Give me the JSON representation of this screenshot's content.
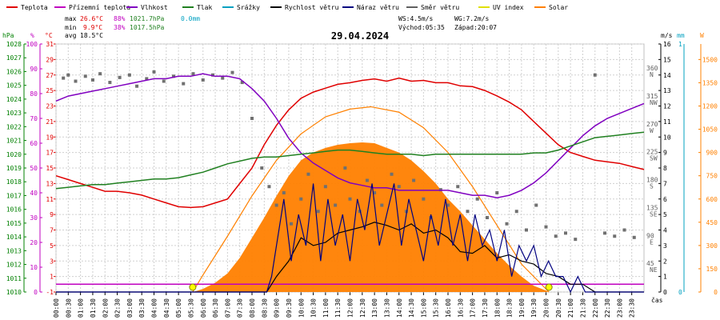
{
  "chart_data": {
    "type": "line",
    "title": "29.04.2024",
    "legend": [
      {
        "label": "Teplota",
        "color": "#e00000"
      },
      {
        "label": "Přízemní teplota",
        "color": "#c000c0"
      },
      {
        "label": "Vlhkost",
        "color": "#8000c0"
      },
      {
        "label": "Tlak",
        "color": "#208020"
      },
      {
        "label": "Srážky",
        "color": "#00a0c0"
      },
      {
        "label": "Rychlost větru",
        "color": "#000000"
      },
      {
        "label": "Náraz větru",
        "color": "#000080"
      },
      {
        "label": "Směr větru",
        "color": "#606060"
      },
      {
        "label": "UV index",
        "color": "#e0e000"
      },
      {
        "label": "Solar",
        "color": "#ff8000"
      }
    ],
    "stats": {
      "max_label": "max",
      "min_label": "min",
      "avg_label": "avg",
      "max_temp": "26.6°C",
      "max_hum": "88%",
      "max_press": "1021.7hPa",
      "max_rain": "0.0mm",
      "min_temp": "9.9°C",
      "min_hum": "38%",
      "min_press": "1017.5hPa",
      "avg_temp": "18.5°C"
    },
    "wind_info": {
      "ws": "WS:4.5m/s",
      "wg": "WG:7.2m/s",
      "sunrise": "Východ:05:35",
      "sunset": "Západ:20:07"
    },
    "axes": {
      "hpa": {
        "unit": "hPa",
        "ticks": [
          "1028",
          "1027",
          "1026",
          "1025",
          "1024",
          "1023",
          "1022",
          "1021",
          "1020",
          "1019",
          "1018",
          "1017",
          "1016",
          "1015",
          "1014",
          "1013",
          "1012",
          "1011",
          "1010"
        ],
        "range": [
          1010,
          1028
        ],
        "color": "#008000"
      },
      "pct": {
        "unit": "%",
        "ticks": [
          "100",
          "90",
          "80",
          "70",
          "60",
          "50",
          "40",
          "30",
          "20",
          "10",
          "0"
        ],
        "range": [
          0,
          100
        ],
        "color": "#c000c0"
      },
      "temp": {
        "unit": "°C",
        "ticks": [
          "31",
          "29",
          "27",
          "25",
          "23",
          "21",
          "19",
          "17",
          "15",
          "13",
          "11",
          "9",
          "7",
          "5",
          "3",
          "1",
          "-1"
        ],
        "range": [
          -1,
          31
        ],
        "color": "#e00000"
      },
      "ms": {
        "unit": "m/s",
        "ticks": [
          "16",
          "15",
          "14",
          "13",
          "12",
          "11",
          "10",
          "9",
          "8",
          "7",
          "6",
          "5",
          "4",
          "3",
          "2",
          "1",
          "0"
        ],
        "range": [
          0,
          16
        ],
        "color": "#000000"
      },
      "dir": {
        "ticks": [
          {
            "v": 360,
            "a": "360",
            "b": "N"
          },
          {
            "v": 315,
            "a": "315",
            "b": "NW"
          },
          {
            "v": 270,
            "a": "270",
            "b": "W"
          },
          {
            "v": 225,
            "a": "225",
            "b": "SW"
          },
          {
            "v": 180,
            "a": "180",
            "b": "S"
          },
          {
            "v": 135,
            "a": "135",
            "b": "SE"
          },
          {
            "v": 90,
            "a": "90",
            "b": "E"
          },
          {
            "v": 45,
            "a": "45",
            "b": "NE"
          }
        ]
      },
      "mm": {
        "unit": "mm",
        "ticks": [
          "1",
          "0"
        ],
        "color": "#00a0c0"
      },
      "w": {
        "unit": "W",
        "ticks": [
          "1500",
          "1350",
          "1200",
          "1050",
          "900",
          "750",
          "600",
          "450",
          "300",
          "150",
          "0"
        ],
        "range": [
          0,
          1600
        ],
        "color": "#ff8000"
      },
      "time": {
        "label": "čas",
        "ticks": [
          "00:00",
          "00:30",
          "01:00",
          "01:30",
          "02:00",
          "02:30",
          "03:00",
          "03:30",
          "04:00",
          "04:30",
          "05:00",
          "05:30",
          "06:00",
          "06:30",
          "07:00",
          "07:30",
          "08:00",
          "08:30",
          "09:00",
          "09:30",
          "10:00",
          "10:30",
          "11:00",
          "11:30",
          "12:00",
          "12:30",
          "13:00",
          "13:30",
          "14:00",
          "14:30",
          "15:00",
          "15:30",
          "16:00",
          "16:30",
          "17:00",
          "17:30",
          "18:00",
          "18:30",
          "19:00",
          "19:30",
          "20:00",
          "20:30",
          "21:00",
          "21:30",
          "22:00",
          "22:30",
          "23:00",
          "23:30"
        ]
      }
    },
    "series": [
      {
        "name": "Teplota",
        "key": "temp",
        "axis": "temp",
        "color": "#e00000",
        "x": [
          0,
          0.5,
          1,
          1.5,
          2,
          2.5,
          3,
          3.5,
          4,
          4.5,
          5,
          5.5,
          6,
          6.5,
          7,
          7.5,
          8,
          8.5,
          9,
          9.5,
          10,
          10.5,
          11,
          11.5,
          12,
          12.5,
          13,
          13.5,
          14,
          14.5,
          15,
          15.5,
          16,
          16.5,
          17,
          17.5,
          18,
          18.5,
          19,
          19.5,
          20,
          20.5,
          21,
          21.5,
          22,
          22.5,
          23,
          23.5,
          24
        ],
        "values": [
          14,
          13.5,
          13,
          12.5,
          12,
          12,
          11.8,
          11.5,
          11,
          10.5,
          10,
          9.9,
          10,
          10.5,
          11,
          13,
          15,
          18,
          20.5,
          22.5,
          24,
          24.8,
          25.3,
          25.8,
          26,
          26.3,
          26.5,
          26.2,
          26.6,
          26.2,
          26.3,
          26,
          26,
          25.6,
          25.5,
          25,
          24.3,
          23.5,
          22.5,
          21,
          19.5,
          18,
          17,
          16.5,
          16,
          15.8,
          15.6,
          15.2,
          14.8
        ]
      },
      {
        "name": "Vlhkost",
        "key": "hum",
        "axis": "pct",
        "color": "#8000c0",
        "x": [
          0,
          0.5,
          1,
          1.5,
          2,
          2.5,
          3,
          3.5,
          4,
          4.5,
          5,
          5.5,
          6,
          6.5,
          7,
          7.5,
          8,
          8.5,
          9,
          9.5,
          10,
          10.5,
          11,
          11.5,
          12,
          12.5,
          13,
          13.5,
          14,
          14.5,
          15,
          15.5,
          16,
          16.5,
          17,
          17.5,
          18,
          18.5,
          19,
          19.5,
          20,
          20.5,
          21,
          21.5,
          22,
          22.5,
          23,
          23.5,
          24
        ],
        "values": [
          77,
          79,
          80,
          81,
          82,
          83,
          84,
          85,
          86,
          86,
          87,
          87,
          88,
          87,
          87,
          86,
          82,
          77,
          70,
          62,
          56,
          52,
          49,
          46,
          44,
          43,
          42,
          42,
          41,
          41,
          41,
          41,
          41,
          40,
          39,
          39,
          38,
          39,
          41,
          44,
          48,
          53,
          58,
          63,
          67,
          70,
          72,
          74,
          76
        ]
      },
      {
        "name": "Tlak",
        "key": "press",
        "axis": "hpa",
        "color": "#208020",
        "x": [
          0,
          0.5,
          1,
          1.5,
          2,
          2.5,
          3,
          3.5,
          4,
          4.5,
          5,
          5.5,
          6,
          6.5,
          7,
          7.5,
          8,
          8.5,
          9,
          9.5,
          10,
          10.5,
          11,
          11.5,
          12,
          12.5,
          13,
          13.5,
          14,
          14.5,
          15,
          15.5,
          16,
          16.5,
          17,
          17.5,
          18,
          18.5,
          19,
          19.5,
          20,
          20.5,
          21,
          21.5,
          22,
          22.5,
          23,
          23.5,
          24
        ],
        "values": [
          1017.5,
          1017.6,
          1017.7,
          1017.8,
          1017.8,
          1017.9,
          1018,
          1018.1,
          1018.2,
          1018.2,
          1018.3,
          1018.5,
          1018.7,
          1019,
          1019.3,
          1019.5,
          1019.7,
          1019.8,
          1019.8,
          1019.9,
          1020,
          1020.1,
          1020.2,
          1020.3,
          1020.3,
          1020.2,
          1020.1,
          1020,
          1020,
          1020,
          1019.9,
          1020,
          1020,
          1020,
          1020,
          1020,
          1020,
          1020,
          1020,
          1020.1,
          1020.1,
          1020.3,
          1020.6,
          1020.9,
          1021.2,
          1021.3,
          1021.4,
          1021.5,
          1021.6
        ]
      },
      {
        "name": "Přízemní teplota",
        "key": "ground",
        "axis": "temp",
        "color": "#c000c0",
        "x": [
          0,
          24
        ],
        "values": [
          0,
          0
        ]
      },
      {
        "name": "Rychlost větru",
        "key": "ws",
        "axis": "ms",
        "color": "#000000",
        "x": [
          0,
          8.6,
          8.8,
          9,
          9.5,
          10,
          10.5,
          11,
          11.5,
          12,
          12.5,
          13,
          13.5,
          14,
          14.5,
          15,
          15.5,
          16,
          16.5,
          17,
          17.5,
          18,
          18.5,
          19,
          19.5,
          20,
          20.5,
          21,
          21.5,
          22,
          24
        ],
        "values": [
          0,
          0,
          0.5,
          1,
          2,
          3.5,
          3,
          3.2,
          3.8,
          4,
          4.2,
          4.5,
          4.3,
          4,
          4.4,
          3.8,
          4,
          3.5,
          2.6,
          2.5,
          3,
          2.2,
          2.4,
          2,
          1.8,
          1.2,
          1,
          0.5,
          0.5,
          0,
          0
        ]
      },
      {
        "name": "Náraz větru",
        "key": "wg",
        "axis": "ms",
        "color": "#000080",
        "x": [
          0,
          8.6,
          8.8,
          9,
          9.3,
          9.6,
          9.9,
          10.2,
          10.5,
          10.8,
          11.1,
          11.4,
          11.7,
          12,
          12.3,
          12.6,
          12.9,
          13.2,
          13.5,
          13.8,
          14.1,
          14.4,
          14.7,
          15,
          15.3,
          15.6,
          15.9,
          16.2,
          16.5,
          16.8,
          17.1,
          17.4,
          17.7,
          18,
          18.3,
          18.6,
          18.9,
          19.2,
          19.5,
          19.8,
          20.1,
          20.4,
          20.7,
          21,
          21.3,
          21.6,
          24
        ],
        "values": [
          0,
          0,
          1,
          3,
          6,
          2,
          5,
          3,
          7,
          2,
          6,
          3,
          5,
          2,
          6,
          4,
          7,
          3,
          5,
          7,
          3,
          6,
          4,
          2,
          5,
          3,
          6,
          3,
          5,
          2,
          5,
          3,
          4,
          2,
          4,
          1,
          3,
          2,
          3,
          1,
          2,
          1,
          1,
          0,
          1,
          0,
          0
        ]
      }
    ],
    "wind_dir_points": [
      {
        "x": 0.3,
        "v": 345
      },
      {
        "x": 0.5,
        "v": 350
      },
      {
        "x": 0.8,
        "v": 340
      },
      {
        "x": 1.2,
        "v": 348
      },
      {
        "x": 1.5,
        "v": 342
      },
      {
        "x": 1.8,
        "v": 352
      },
      {
        "x": 2.2,
        "v": 338
      },
      {
        "x": 2.6,
        "v": 346
      },
      {
        "x": 3,
        "v": 350
      },
      {
        "x": 3.3,
        "v": 332
      },
      {
        "x": 3.7,
        "v": 344
      },
      {
        "x": 4,
        "v": 355
      },
      {
        "x": 4.4,
        "v": 340
      },
      {
        "x": 4.8,
        "v": 348
      },
      {
        "x": 5.2,
        "v": 336
      },
      {
        "x": 5.6,
        "v": 352
      },
      {
        "x": 6,
        "v": 342
      },
      {
        "x": 6.4,
        "v": 350
      },
      {
        "x": 6.8,
        "v": 345
      },
      {
        "x": 7.2,
        "v": 354
      },
      {
        "x": 7.6,
        "v": 338
      },
      {
        "x": 8,
        "v": 280
      },
      {
        "x": 8.4,
        "v": 200
      },
      {
        "x": 8.7,
        "v": 170
      },
      {
        "x": 9,
        "v": 140
      },
      {
        "x": 9.3,
        "v": 160
      },
      {
        "x": 9.6,
        "v": 110
      },
      {
        "x": 10,
        "v": 150
      },
      {
        "x": 10.3,
        "v": 190
      },
      {
        "x": 10.7,
        "v": 130
      },
      {
        "x": 11,
        "v": 170
      },
      {
        "x": 11.4,
        "v": 140
      },
      {
        "x": 11.8,
        "v": 200
      },
      {
        "x": 12,
        "v": 150
      },
      {
        "x": 12.4,
        "v": 130
      },
      {
        "x": 12.7,
        "v": 180
      },
      {
        "x": 13,
        "v": 160
      },
      {
        "x": 13.3,
        "v": 140
      },
      {
        "x": 13.7,
        "v": 190
      },
      {
        "x": 14,
        "v": 170
      },
      {
        "x": 14.3,
        "v": 130
      },
      {
        "x": 14.6,
        "v": 180
      },
      {
        "x": 15,
        "v": 150
      },
      {
        "x": 15.3,
        "v": 120
      },
      {
        "x": 15.7,
        "v": 165
      },
      {
        "x": 16,
        "v": 140
      },
      {
        "x": 16.4,
        "v": 170
      },
      {
        "x": 16.8,
        "v": 130
      },
      {
        "x": 17.2,
        "v": 150
      },
      {
        "x": 17.6,
        "v": 120
      },
      {
        "x": 18,
        "v": 160
      },
      {
        "x": 18.4,
        "v": 110
      },
      {
        "x": 18.8,
        "v": 130
      },
      {
        "x": 19.2,
        "v": 100
      },
      {
        "x": 19.6,
        "v": 140
      },
      {
        "x": 20,
        "v": 105
      },
      {
        "x": 20.4,
        "v": 90
      },
      {
        "x": 20.8,
        "v": 95
      },
      {
        "x": 21.2,
        "v": 85
      },
      {
        "x": 22,
        "v": 350
      },
      {
        "x": 22.4,
        "v": 95
      },
      {
        "x": 22.8,
        "v": 90
      },
      {
        "x": 23.2,
        "v": 100
      },
      {
        "x": 23.6,
        "v": 88
      }
    ],
    "solar": {
      "x": [
        5.6,
        6,
        6.5,
        7,
        7.5,
        8,
        8.5,
        9,
        9.5,
        10,
        10.5,
        11,
        11.5,
        12,
        12.5,
        13,
        13.5,
        14,
        14.5,
        15,
        15.5,
        16,
        16.5,
        17,
        17.5,
        18,
        18.5,
        19,
        19.5,
        20,
        20.1
      ],
      "values": [
        0,
        20,
        60,
        120,
        220,
        350,
        480,
        620,
        750,
        850,
        900,
        930,
        950,
        960,
        965,
        960,
        930,
        900,
        850,
        780,
        700,
        600,
        520,
        430,
        340,
        250,
        170,
        100,
        40,
        10,
        0
      ],
      "theory_x": [
        5.58,
        6,
        7,
        8,
        9,
        10,
        11,
        12,
        12.85,
        14,
        15,
        16,
        17,
        18,
        19,
        20.12
      ],
      "theory_values": [
        0,
        110,
        360,
        620,
        850,
        1020,
        1130,
        1180,
        1195,
        1160,
        1060,
        900,
        680,
        430,
        180,
        0
      ]
    },
    "sun_markers": [
      {
        "x": 5.58
      },
      {
        "x": 20.12
      }
    ]
  }
}
